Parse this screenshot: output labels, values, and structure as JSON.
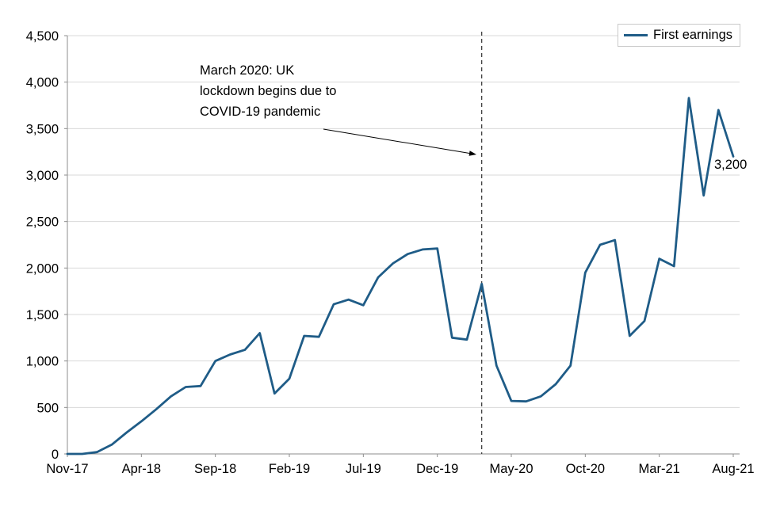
{
  "legend": {
    "label": "First earnings"
  },
  "annotation": {
    "text": "March 2020: UK\nlockdown begins due to\nCOVID-19 pandemic"
  },
  "end_label": "3,200",
  "colors": {
    "line": "#1f5c87",
    "grid": "#d9d9d9",
    "axis": "#8e8e8e",
    "dashed": "#404040",
    "text": "#000000"
  },
  "chart_data": {
    "type": "line",
    "title": "",
    "categories": [
      "Nov-17",
      "Dec-17",
      "Jan-18",
      "Feb-18",
      "Mar-18",
      "Apr-18",
      "May-18",
      "Jun-18",
      "Jul-18",
      "Aug-18",
      "Sep-18",
      "Oct-18",
      "Nov-18",
      "Dec-18",
      "Jan-19",
      "Feb-19",
      "Mar-19",
      "Apr-19",
      "May-19",
      "Jun-19",
      "Jul-19",
      "Aug-19",
      "Sep-19",
      "Oct-19",
      "Nov-19",
      "Dec-19",
      "Jan-20",
      "Feb-20",
      "Mar-20",
      "Apr-20",
      "May-20",
      "Jun-20",
      "Jul-20",
      "Aug-20",
      "Sep-20",
      "Oct-20",
      "Nov-20",
      "Dec-20",
      "Jan-21",
      "Feb-21",
      "Mar-21",
      "Apr-21",
      "May-21",
      "Jun-21",
      "Jul-21",
      "Aug-21"
    ],
    "series": [
      {
        "name": "First earnings",
        "values": [
          0,
          0,
          20,
          100,
          230,
          350,
          480,
          620,
          720,
          730,
          1000,
          1070,
          1120,
          1300,
          650,
          810,
          1270,
          1260,
          1610,
          1660,
          1600,
          1900,
          2050,
          2150,
          2200,
          2210,
          1250,
          1230,
          1830,
          950,
          570,
          565,
          620,
          750,
          950,
          1950,
          2250,
          2300,
          1270,
          1430,
          2100,
          2020,
          3830,
          2780,
          3700,
          3200
        ]
      }
    ],
    "x_tick_every": 5,
    "x_tick_labels": [
      "Nov-17",
      "Apr-18",
      "Sep-18",
      "Feb-19",
      "Jul-19",
      "Dec-19",
      "May-20",
      "Oct-20",
      "Mar-21",
      "Aug-21"
    ],
    "ylim": [
      0,
      4500
    ],
    "ytick_step": 500,
    "grid": "horizontal",
    "legend_position": "top-right",
    "lockdown_line_index": 28,
    "lockdown_line_label": "March 2020: UK lockdown begins due to COVID-19 pandemic",
    "end_label_value": 3200
  }
}
